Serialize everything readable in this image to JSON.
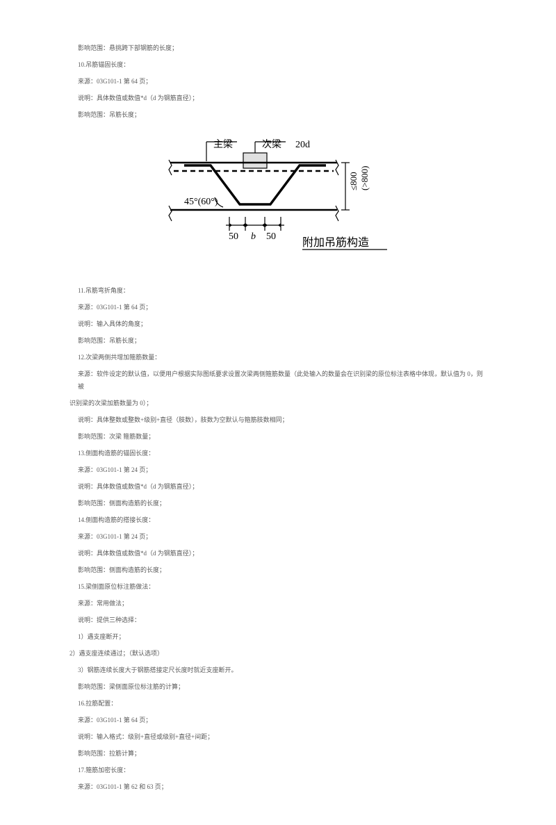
{
  "lines": [
    {
      "text": "影响范围：悬挑跨下部钢筋的长度；",
      "indent": 1
    },
    {
      "text": "10.吊筋锚固长度：",
      "indent": 1
    },
    {
      "text": "来源：03G101-1 第 64 页；",
      "indent": 1
    },
    {
      "text": "说明：具体数值或数值*d（d 为钢筋直径）；",
      "indent": 1
    },
    {
      "text": "影响范围：吊筋长度；",
      "indent": 1
    }
  ],
  "diagram": {
    "labels": {
      "main_beam": "主梁",
      "secondary_beam": "次梁",
      "anchor_length": "20d",
      "angle": "45°(60°)",
      "dim_left": "50",
      "dim_mid": "b",
      "dim_right": "50",
      "height_upper": "≤800",
      "height_lower": "(>800)",
      "caption": "附加吊筋构造"
    },
    "colors": {
      "stroke": "#000000",
      "text": "#000000",
      "background": "#ffffff",
      "gray_fill": "#e0e0e0"
    },
    "style": {
      "line_width_main": 2.5,
      "line_width_thin": 1.2,
      "font_size_label": 14,
      "font_size_caption": 16,
      "font_family": "KaiTi, STKaiti, serif"
    }
  },
  "lines_after": [
    {
      "text": "11.吊筋弯折角度：",
      "indent": 1
    },
    {
      "text": "来源：03G101-1 第 64 页；",
      "indent": 1
    },
    {
      "text": "说明：输入具体的角度；",
      "indent": 1
    },
    {
      "text": "影响范围：吊筋长度；",
      "indent": 1
    },
    {
      "text": "12.次梁两侧共增加箍筋数量：",
      "indent": 1
    },
    {
      "text": "来源：软件设定的默认值，以便用户根据实际图纸要求设置次梁两侧箍筋数量（此处输入的数量会在识别梁的原位标注表格中体现，默认值为 0，则被",
      "indent": 1
    },
    {
      "text": "识别梁的次梁加筋数量为 0）；",
      "indent": 0
    },
    {
      "text": "说明：具体整数或整数+级别+直径（肢数），肢数为空默认与箍筋肢数相同；",
      "indent": 1
    },
    {
      "text": "影响范围：次梁 箍筋数量；",
      "indent": 1
    },
    {
      "text": "13.侧面构造筋的锚固长度：",
      "indent": 1
    },
    {
      "text": "来源：03G101-1 第 24 页；",
      "indent": 1
    },
    {
      "text": "说明：具体数值或数值*d（d 为钢筋直径）；",
      "indent": 1
    },
    {
      "text": "影响范围：侧面构造筋的长度；",
      "indent": 1
    },
    {
      "text": "14.侧面构造筋的搭接长度：",
      "indent": 1
    },
    {
      "text": "来源：03G101-1 第 24 页；",
      "indent": 1
    },
    {
      "text": "说明：具体数值或数值*d（d 为钢筋直径）；",
      "indent": 1
    },
    {
      "text": "影响范围：侧面构造筋的长度；",
      "indent": 1
    },
    {
      "text": "15.梁侧面原位标注筋做法：",
      "indent": 1
    },
    {
      "text": "来源：常用做法；",
      "indent": 1
    },
    {
      "text": "说明：提供三种选择：",
      "indent": 1
    },
    {
      "text": "1）遇支座断开；",
      "indent": 1
    },
    {
      "text": "2）遇支座连续通过；（默认选项）",
      "indent": 0
    },
    {
      "text": "3）钢筋连续长度大于钢筋搭接定尺长度时就近支座断开。",
      "indent": 1
    },
    {
      "text": "影响范围：梁侧面原位标注筋的计算；",
      "indent": 1
    },
    {
      "text": "16.拉筋配置：",
      "indent": 1
    },
    {
      "text": "来源：03G101-1 第 64 页；",
      "indent": 1
    },
    {
      "text": "说明：输入格式：级别+直径或级别+直径+间距；",
      "indent": 1
    },
    {
      "text": "影响范围：拉筋计算；",
      "indent": 1
    },
    {
      "text": "17.箍筋加密长度：",
      "indent": 1
    },
    {
      "text": "来源：03G101-1 第 62 和 63 页；",
      "indent": 1
    }
  ]
}
